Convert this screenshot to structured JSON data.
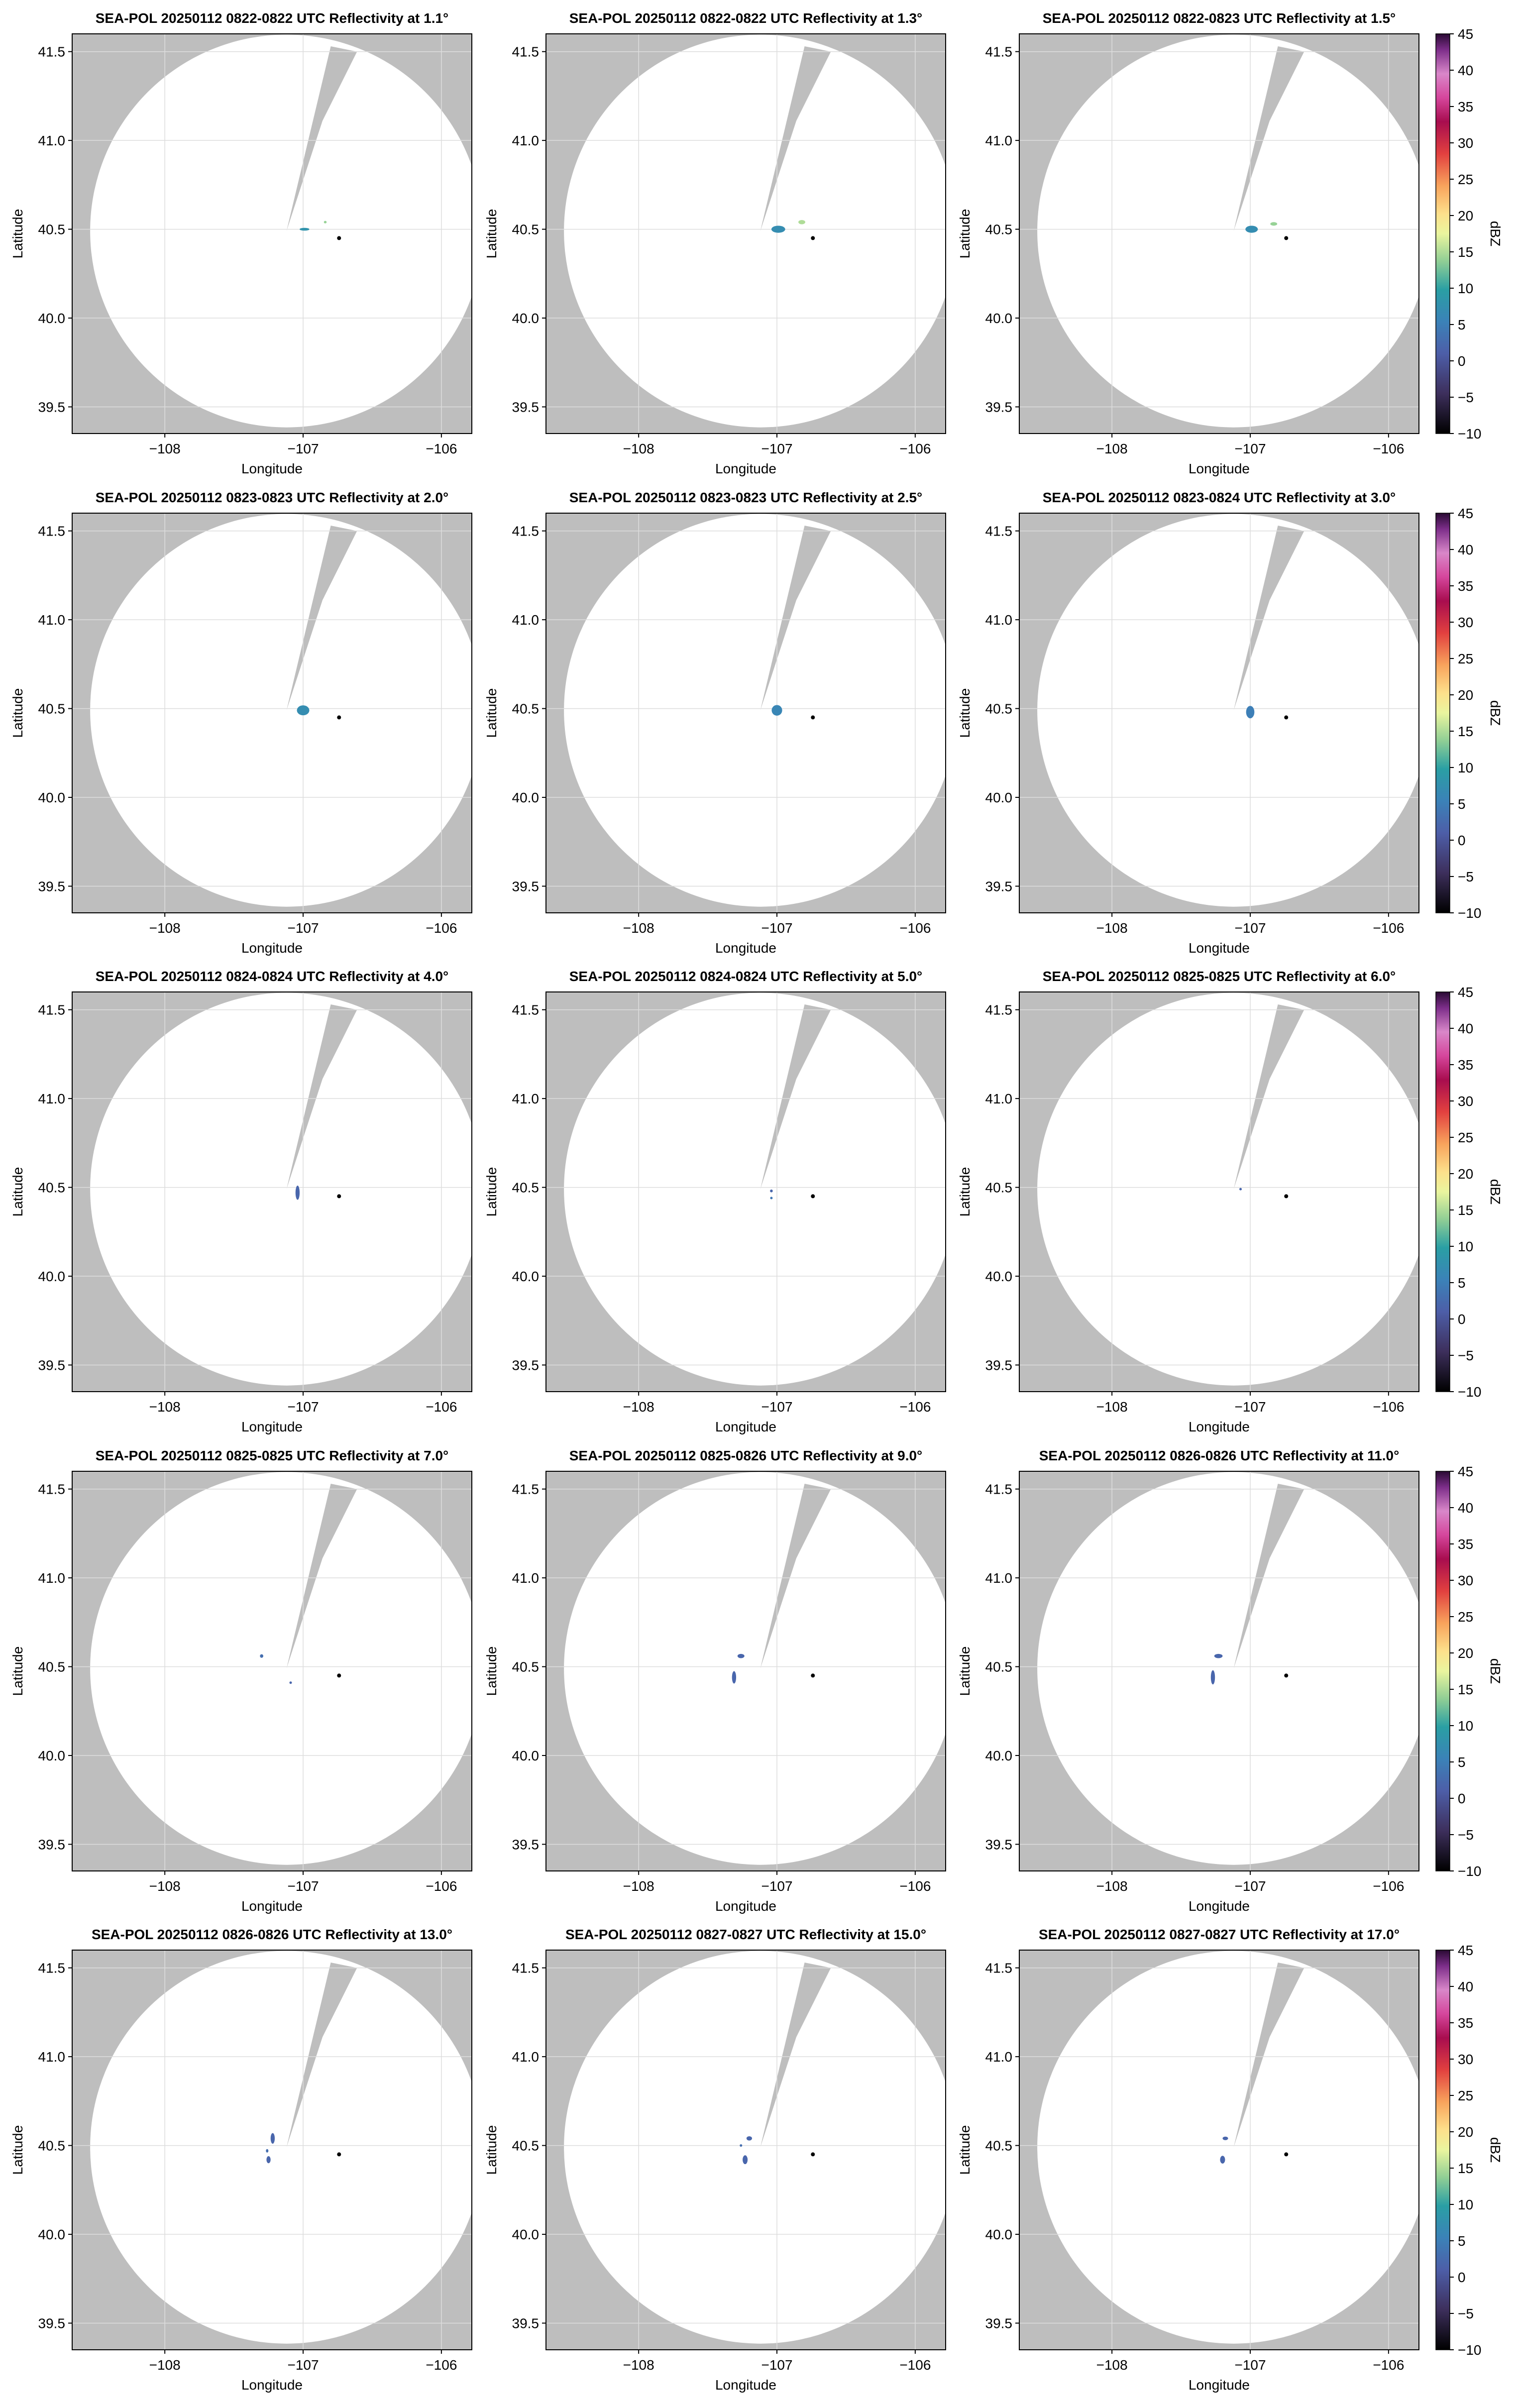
{
  "figure": {
    "xlabel": "Longitude",
    "ylabel": "Latitude",
    "xticks": [
      {
        "v": -108,
        "label": "−108"
      },
      {
        "v": -107,
        "label": "−107"
      },
      {
        "v": -106,
        "label": "−106"
      }
    ],
    "yticks": [
      {
        "v": 39.5,
        "label": "39.5"
      },
      {
        "v": 40.0,
        "label": "40.0"
      },
      {
        "v": 40.5,
        "label": "40.5"
      },
      {
        "v": 41.0,
        "label": "41.0"
      },
      {
        "v": 41.5,
        "label": "41.5"
      }
    ],
    "xlim": [
      -108.67,
      -105.78
    ],
    "ylim": [
      39.35,
      41.6
    ],
    "radar": {
      "lon": -107.12,
      "lat": 40.49,
      "range_deg": 1.42,
      "blocked_sector": [
        [
          -107.12,
          40.49
        ],
        [
          -106.8,
          41.53
        ],
        [
          -106.61,
          41.5
        ],
        [
          -106.86,
          41.11
        ]
      ]
    },
    "site_marker": {
      "lon": -106.74,
      "lat": 40.45
    },
    "colors": {
      "no_data": "#bebebe",
      "scan": "#ffffff",
      "grid": "#dddddd",
      "site": "#000000"
    }
  },
  "colorbar": {
    "label": "dBZ",
    "ticks": [
      {
        "v": 45,
        "label": "45"
      },
      {
        "v": 40,
        "label": "40"
      },
      {
        "v": 35,
        "label": "35"
      },
      {
        "v": 30,
        "label": "30"
      },
      {
        "v": 25,
        "label": "25"
      },
      {
        "v": 20,
        "label": "20"
      },
      {
        "v": 15,
        "label": "15"
      },
      {
        "v": 10,
        "label": "10"
      },
      {
        "v": 5,
        "label": "5"
      },
      {
        "v": 0,
        "label": "0"
      },
      {
        "v": -5,
        "label": "−5"
      },
      {
        "v": -10,
        "label": "−10"
      }
    ],
    "range": [
      -10,
      45
    ],
    "gradient_stops": [
      [
        "#000000",
        0
      ],
      [
        "#3d2f5c",
        0.1
      ],
      [
        "#4d5ea8",
        0.2
      ],
      [
        "#3b82b8",
        0.28
      ],
      [
        "#2a9fa4",
        0.36
      ],
      [
        "#8fce95",
        0.43
      ],
      [
        "#eaf59e",
        0.5
      ],
      [
        "#fde08b",
        0.55
      ],
      [
        "#f8a35c",
        0.62
      ],
      [
        "#e2403f",
        0.7
      ],
      [
        "#a80d4f",
        0.78
      ],
      [
        "#d5469c",
        0.84
      ],
      [
        "#d987c9",
        0.9
      ],
      [
        "#7d2e8a",
        0.96
      ],
      [
        "#2a0a34",
        1.0
      ]
    ]
  },
  "chart_data": [
    {
      "type": "map",
      "title": "SEA-POL 20250112 0822-0822 UTC Reflectivity at 1.1°",
      "echoes": [
        {
          "lon": -106.99,
          "lat": 40.5,
          "rx": 0.035,
          "ry": 0.008,
          "dbz": 8
        },
        {
          "lon": -106.84,
          "lat": 40.54,
          "rx": 0.01,
          "ry": 0.006,
          "dbz": 14
        }
      ]
    },
    {
      "type": "map",
      "title": "SEA-POL 20250112 0822-0822 UTC Reflectivity at 1.3°",
      "echoes": [
        {
          "lon": -106.99,
          "lat": 40.5,
          "rx": 0.05,
          "ry": 0.02,
          "dbz": 7
        },
        {
          "lon": -106.82,
          "lat": 40.54,
          "rx": 0.025,
          "ry": 0.012,
          "dbz": 15
        }
      ]
    },
    {
      "type": "map",
      "title": "SEA-POL 20250112 0822-0823 UTC Reflectivity at 1.5°",
      "echoes": [
        {
          "lon": -106.99,
          "lat": 40.5,
          "rx": 0.045,
          "ry": 0.02,
          "dbz": 7
        },
        {
          "lon": -106.83,
          "lat": 40.53,
          "rx": 0.025,
          "ry": 0.01,
          "dbz": 14
        }
      ]
    },
    {
      "type": "map",
      "title": "SEA-POL 20250112 0823-0823 UTC Reflectivity at 2.0°",
      "echoes": [
        {
          "lon": -107.0,
          "lat": 40.49,
          "rx": 0.045,
          "ry": 0.028,
          "dbz": 7
        }
      ]
    },
    {
      "type": "map",
      "title": "SEA-POL 20250112 0823-0823 UTC Reflectivity at 2.5°",
      "echoes": [
        {
          "lon": -107.0,
          "lat": 40.49,
          "rx": 0.038,
          "ry": 0.03,
          "dbz": 6
        }
      ]
    },
    {
      "type": "map",
      "title": "SEA-POL 20250112 0823-0824 UTC Reflectivity at 3.0°",
      "echoes": [
        {
          "lon": -107.0,
          "lat": 40.48,
          "rx": 0.03,
          "ry": 0.035,
          "dbz": 5
        }
      ]
    },
    {
      "type": "map",
      "title": "SEA-POL 20250112 0824-0824 UTC Reflectivity at 4.0°",
      "echoes": [
        {
          "lon": -107.04,
          "lat": 40.47,
          "rx": 0.015,
          "ry": 0.04,
          "dbz": 2
        }
      ]
    },
    {
      "type": "map",
      "title": "SEA-POL 20250112 0824-0824 UTC Reflectivity at 5.0°",
      "echoes": [
        {
          "lon": -107.04,
          "lat": 40.48,
          "rx": 0.01,
          "ry": 0.008,
          "dbz": 2
        },
        {
          "lon": -107.04,
          "lat": 40.44,
          "rx": 0.006,
          "ry": 0.006,
          "dbz": 4
        }
      ]
    },
    {
      "type": "map",
      "title": "SEA-POL 20250112 0825-0825 UTC Reflectivity at 6.0°",
      "echoes": [
        {
          "lon": -107.07,
          "lat": 40.49,
          "rx": 0.006,
          "ry": 0.004,
          "dbz": 2
        }
      ]
    },
    {
      "type": "map",
      "title": "SEA-POL 20250112 0825-0825 UTC Reflectivity at 7.0°",
      "echoes": [
        {
          "lon": -107.3,
          "lat": 40.56,
          "rx": 0.012,
          "ry": 0.01,
          "dbz": 3
        },
        {
          "lon": -107.09,
          "lat": 40.41,
          "rx": 0.005,
          "ry": 0.006,
          "dbz": 2
        }
      ]
    },
    {
      "type": "map",
      "title": "SEA-POL 20250112 0825-0826 UTC Reflectivity at 9.0°",
      "echoes": [
        {
          "lon": -107.26,
          "lat": 40.56,
          "rx": 0.025,
          "ry": 0.012,
          "dbz": 2
        },
        {
          "lon": -107.31,
          "lat": 40.44,
          "rx": 0.015,
          "ry": 0.035,
          "dbz": 2
        }
      ]
    },
    {
      "type": "map",
      "title": "SEA-POL 20250112 0826-0826 UTC Reflectivity at 11.0°",
      "echoes": [
        {
          "lon": -107.23,
          "lat": 40.56,
          "rx": 0.03,
          "ry": 0.012,
          "dbz": 2
        },
        {
          "lon": -107.27,
          "lat": 40.44,
          "rx": 0.015,
          "ry": 0.04,
          "dbz": 2
        }
      ]
    },
    {
      "type": "map",
      "title": "SEA-POL 20250112 0826-0826 UTC Reflectivity at 13.0°",
      "echoes": [
        {
          "lon": -107.22,
          "lat": 40.54,
          "rx": 0.015,
          "ry": 0.03,
          "dbz": 2
        },
        {
          "lon": -107.25,
          "lat": 40.42,
          "rx": 0.015,
          "ry": 0.02,
          "dbz": 2
        },
        {
          "lon": -107.26,
          "lat": 40.47,
          "rx": 0.006,
          "ry": 0.01,
          "dbz": 3
        }
      ]
    },
    {
      "type": "map",
      "title": "SEA-POL 20250112 0827-0827 UTC Reflectivity at 15.0°",
      "echoes": [
        {
          "lon": -107.2,
          "lat": 40.54,
          "rx": 0.02,
          "ry": 0.012,
          "dbz": 2
        },
        {
          "lon": -107.23,
          "lat": 40.42,
          "rx": 0.018,
          "ry": 0.025,
          "dbz": 2
        },
        {
          "lon": -107.26,
          "lat": 40.5,
          "rx": 0.006,
          "ry": 0.006,
          "dbz": 3
        }
      ]
    },
    {
      "type": "map",
      "title": "SEA-POL 20250112 0827-0827 UTC Reflectivity at 17.0°",
      "echoes": [
        {
          "lon": -107.18,
          "lat": 40.54,
          "rx": 0.02,
          "ry": 0.01,
          "dbz": 2
        },
        {
          "lon": -107.2,
          "lat": 40.42,
          "rx": 0.018,
          "ry": 0.022,
          "dbz": 2
        }
      ]
    }
  ]
}
